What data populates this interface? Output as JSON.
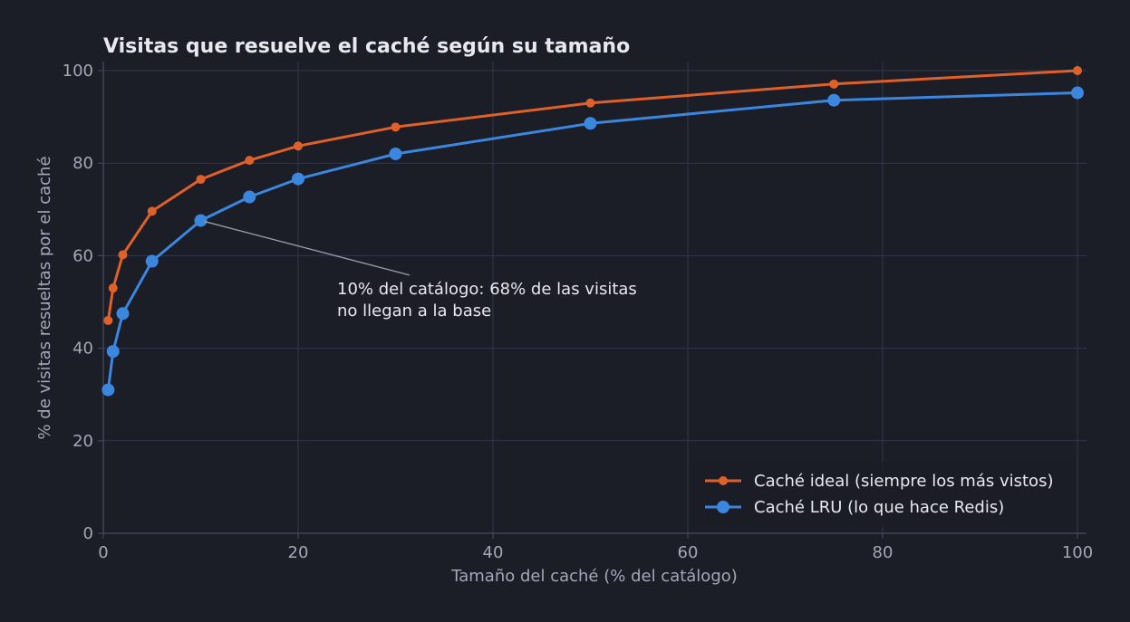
{
  "chart_data": {
    "type": "line",
    "title": "Visitas que resuelve el caché según su tamaño",
    "xlabel": "Tamaño del caché (% del catálogo)",
    "ylabel": "% de visitas resueltas por el caché",
    "xlim": [
      0,
      100
    ],
    "ylim": [
      0,
      100
    ],
    "xticks": [
      0,
      20,
      40,
      60,
      80,
      100
    ],
    "yticks": [
      0,
      20,
      40,
      60,
      80,
      100
    ],
    "grid": true,
    "legend_position": "bottom-right",
    "series": [
      {
        "name": "Caché ideal (siempre los más vistos)",
        "color": "#e0602a",
        "marker": "small-circle",
        "x": [
          0.5,
          1,
          2,
          5,
          10,
          15,
          20,
          30,
          50,
          75,
          100
        ],
        "y": [
          46,
          53,
          60.2,
          69.6,
          76.5,
          80.6,
          83.7,
          87.8,
          93,
          97.1,
          100
        ]
      },
      {
        "name": "Caché LRU (lo que hace Redis)",
        "color": "#3b87e0",
        "marker": "large-circle",
        "x": [
          0.5,
          1,
          2,
          5,
          10,
          15,
          20,
          30,
          50,
          75,
          100
        ],
        "y": [
          31,
          39.3,
          47.5,
          58.8,
          67.6,
          72.7,
          76.6,
          82,
          88.6,
          93.6,
          95.2
        ]
      }
    ],
    "annotation": {
      "lines": [
        "10% del catálogo: 68% de las visitas",
        "no llegan a la base"
      ],
      "target": {
        "x": 10,
        "y": 67.6
      },
      "text_anchor": {
        "x": 24,
        "y": 55.2
      }
    }
  }
}
